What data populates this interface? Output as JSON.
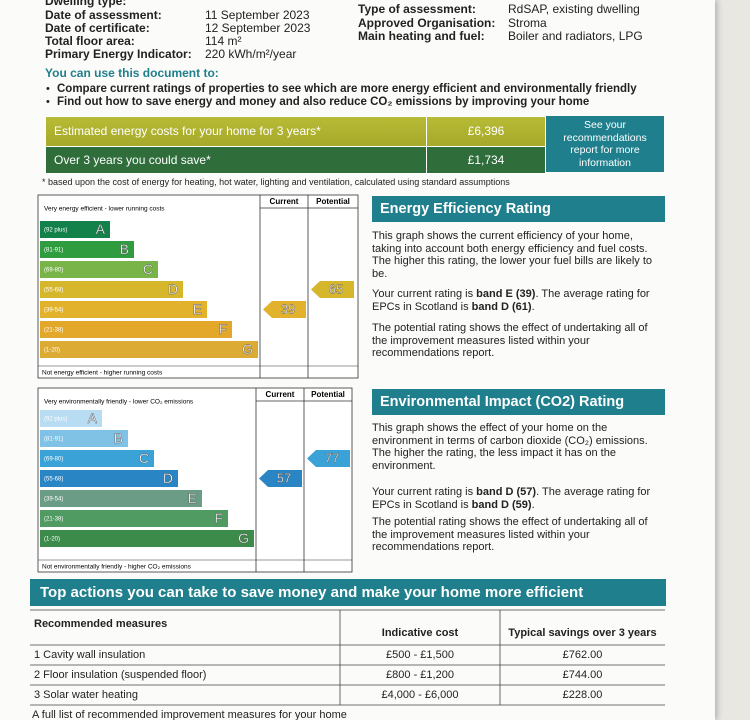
{
  "header": {
    "left": [
      {
        "label": "Dwelling type:",
        "value": ""
      },
      {
        "label": "Date of assessment:",
        "value": "11 September 2023"
      },
      {
        "label": "Date of certificate:",
        "value": "12 September 2023"
      },
      {
        "label": "Total floor area:",
        "value": "114 m²"
      },
      {
        "label": "Primary Energy Indicator:",
        "value": "220 kWh/m²/year"
      }
    ],
    "right": [
      {
        "label": "Type of assessment:",
        "value": "RdSAP, existing dwelling"
      },
      {
        "label": "Approved Organisation:",
        "value": "Stroma"
      },
      {
        "label": "Main heating and fuel:",
        "value": "Boiler and radiators, LPG"
      }
    ]
  },
  "intro": {
    "heading": "You can use this document to:",
    "bullets": [
      "Compare current ratings of properties to see which are more energy efficient and environmentally friendly",
      "Find out how to save energy and money and also reduce CO₂ emissions by improving your home"
    ]
  },
  "costs": {
    "rows": [
      {
        "label": "Estimated energy costs for your home for 3 years*",
        "value": "£6,396"
      },
      {
        "label": "Over 3 years you could save*",
        "value": "£1,734"
      }
    ],
    "side_note": "See your recommendations report for more information",
    "footnote": "* based upon the cost of energy for heating, hot water, lighting and ventilation, calculated using standard assumptions"
  },
  "energy_rating": {
    "title": "Energy Efficiency Rating",
    "top_label": "Very energy efficient - lower running costs",
    "bottom_label": "Not energy efficient - higher running costs",
    "col_current": "Current",
    "col_potential": "Potential",
    "bands": [
      {
        "range": "(92 plus)",
        "letter": "A"
      },
      {
        "range": "(81-91)",
        "letter": "B"
      },
      {
        "range": "(69-80)",
        "letter": "C"
      },
      {
        "range": "(55-68)",
        "letter": "D"
      },
      {
        "range": "(39-54)",
        "letter": "E"
      },
      {
        "range": "(21-38)",
        "letter": "F"
      },
      {
        "range": "(1-20)",
        "letter": "G"
      }
    ],
    "current": 39,
    "potential": 65,
    "paragraphs": [
      [
        "This graph shows the current efficiency of your home, taking into account both energy efficiency and fuel costs. The higher this rating, the lower your fuel bills are likely to be."
      ],
      [
        "Your current rating is ",
        "band E (39)",
        ". The average rating for EPCs in Scotland is ",
        "band D (61)",
        "."
      ],
      [
        "The potential rating shows the effect of undertaking all of the improvement measures listed within your recommendations report."
      ]
    ]
  },
  "environmental_rating": {
    "title": "Environmental Impact (CO2) Rating",
    "top_label": "Very environmentally friendly - lower CO₂ emissions",
    "bottom_label": "Not environmentally friendly - higher CO₂ emissions",
    "col_current": "Current",
    "col_potential": "Potential",
    "bands": [
      {
        "range": "(92 plus)",
        "letter": "A"
      },
      {
        "range": "(81-91)",
        "letter": "B"
      },
      {
        "range": "(69-80)",
        "letter": "C"
      },
      {
        "range": "(55-68)",
        "letter": "D"
      },
      {
        "range": "(39-54)",
        "letter": "E"
      },
      {
        "range": "(21-38)",
        "letter": "F"
      },
      {
        "range": "(1-20)",
        "letter": "G"
      }
    ],
    "current": 57,
    "potential": 77,
    "paragraphs": [
      [
        "This graph shows the effect of your home on the environment in terms of carbon dioxide (CO₂) emissions. The higher the rating, the less impact it has on the environment."
      ],
      [
        "Your current rating is ",
        "band D (57)",
        ". The average rating for EPCs in Scotland is ",
        "band D (59)",
        "."
      ],
      [
        "The potential rating shows the effect of undertaking all of the improvement measures listed within your recommendations report."
      ]
    ]
  },
  "actions": {
    "title": "Top actions you can take to save money and make your home more efficient",
    "table": {
      "header": [
        "Recommended measures",
        "Indicative cost",
        "Typical savings over 3 years"
      ],
      "rows": [
        [
          "1 Cavity wall insulation",
          "£500 - £1,500",
          "£762.00"
        ],
        [
          "2 Floor insulation (suspended floor)",
          "£800 - £1,200",
          "£744.00"
        ],
        [
          "3 Solar water heating",
          "£4,000 - £6,000",
          "£228.00"
        ]
      ]
    },
    "footer": "A full list of recommended improvement measures for your home"
  }
}
